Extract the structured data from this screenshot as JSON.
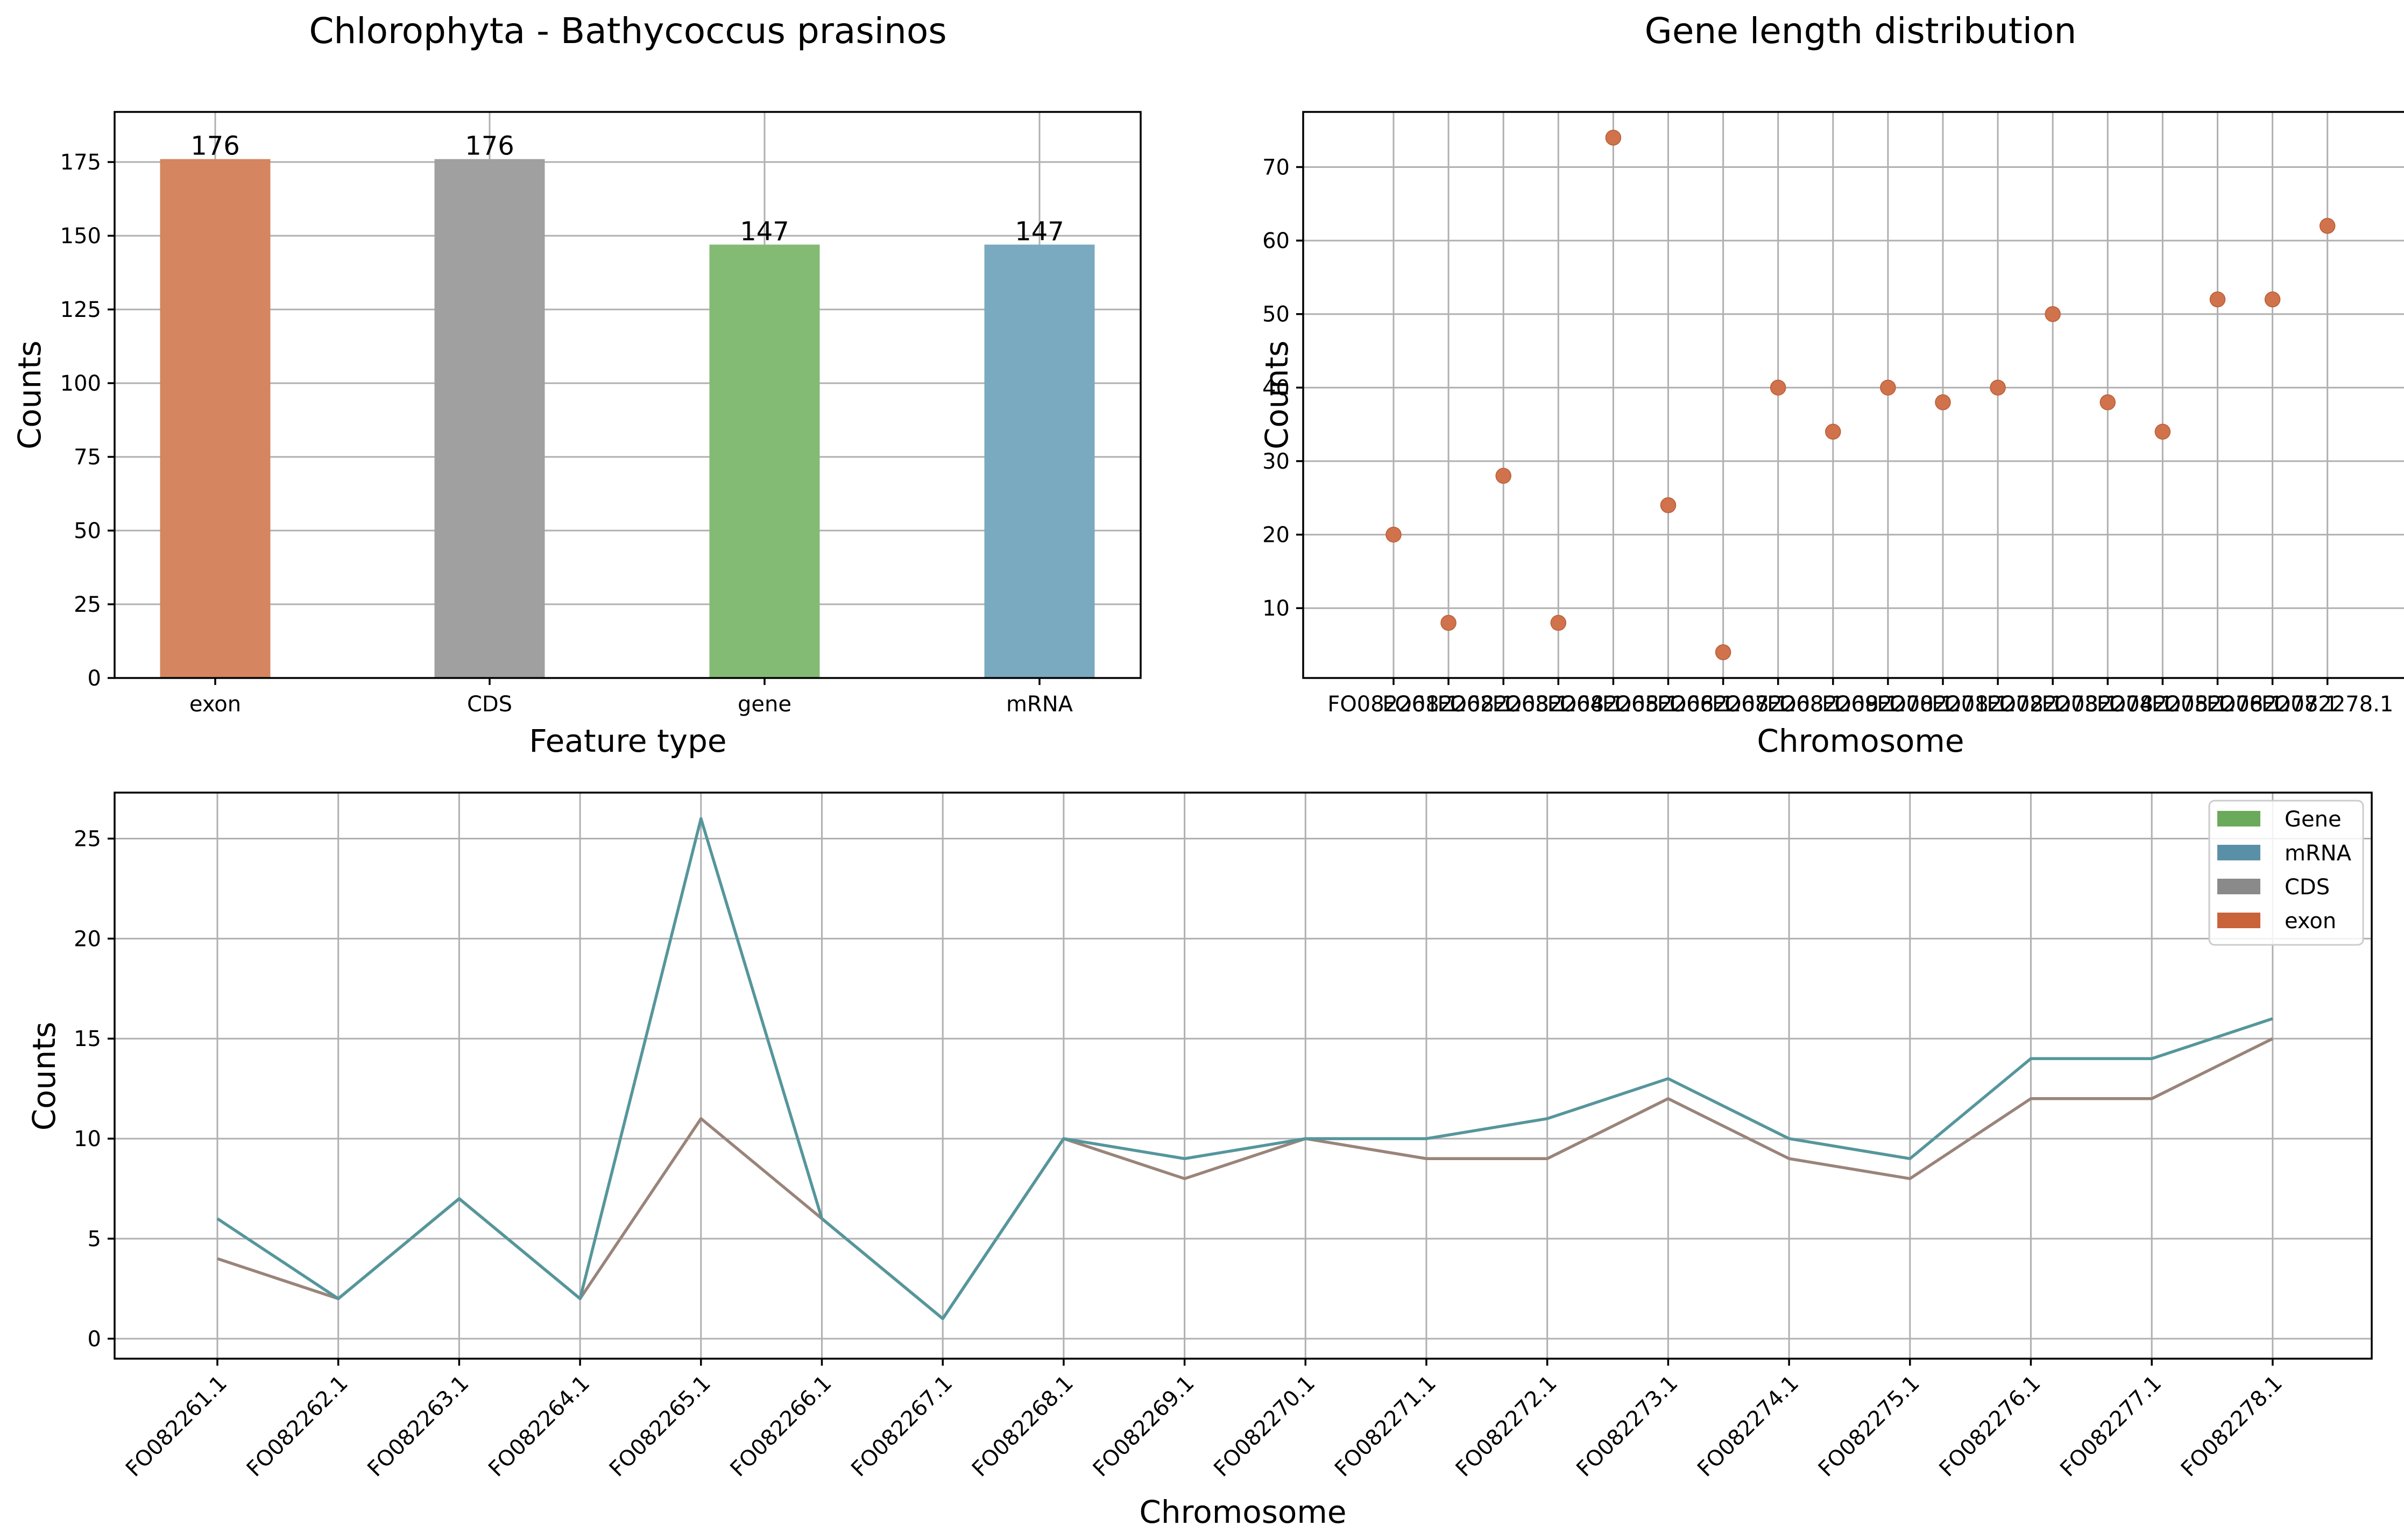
{
  "colors": {
    "exon": "#d5855f",
    "CDS": "#a0a0a0",
    "gene": "#83bb75",
    "mRNA": "#79aabf",
    "scatter": "#d0724b",
    "legend_gene": "#6aaa5a",
    "legend_mRNA": "#5a8fa8",
    "legend_CDS": "#8a8a8a",
    "legend_exon": "#c9633a",
    "line_mrna": "#55969b",
    "line_exon": "#9a847a"
  },
  "chart_data": [
    {
      "type": "bar",
      "title": "Chlorophyta - Bathycoccus prasinos",
      "xlabel": "Feature type",
      "ylabel": "Counts",
      "categories": [
        "exon",
        "CDS",
        "gene",
        "mRNA"
      ],
      "values": [
        176,
        176,
        147,
        147
      ],
      "data_labels": [
        "176",
        "176",
        "147",
        "147"
      ],
      "ylim": [
        0,
        192
      ],
      "yticks": [
        0,
        25,
        50,
        75,
        100,
        125,
        150,
        175
      ],
      "grid": true
    },
    {
      "type": "scatter",
      "title": "Gene length distribution",
      "xlabel": "Chromosome",
      "ylabel": "Counts",
      "categories": [
        "FO082261.1",
        "FO082262.1",
        "FO082263.1",
        "FO082264.1",
        "FO082265.1",
        "FO082266.1",
        "FO082267.1",
        "FO082268.1",
        "FO082269.1",
        "FO082270.1",
        "FO082271.1",
        "FO082272.1",
        "FO082273.1",
        "FO082274.1",
        "FO082275.1",
        "FO082276.1",
        "FO082277.1",
        "FO082278.1"
      ],
      "values": [
        20,
        8,
        28,
        8,
        74,
        24,
        4,
        40,
        34,
        40,
        38,
        40,
        50,
        38,
        34,
        52,
        52,
        62
      ],
      "ylim": [
        0.5,
        77.5
      ],
      "yticks": [
        10,
        20,
        30,
        40,
        50,
        60,
        70
      ],
      "grid": true
    },
    {
      "type": "line",
      "title": "",
      "xlabel": "Chromosome",
      "ylabel": "Counts",
      "categories": [
        "FO082261.1",
        "FO082262.1",
        "FO082263.1",
        "FO082264.1",
        "FO082265.1",
        "FO082266.1",
        "FO082267.1",
        "FO082268.1",
        "FO082269.1",
        "FO082270.1",
        "FO082271.1",
        "FO082272.1",
        "FO082273.1",
        "FO082274.1",
        "FO082275.1",
        "FO082276.1",
        "FO082277.1",
        "FO082278.1"
      ],
      "series": [
        {
          "name": "mRNA",
          "values": [
            6,
            2,
            7,
            2,
            26,
            6,
            1,
            10,
            9,
            10,
            10,
            11,
            13,
            10,
            9,
            14,
            14,
            16
          ]
        },
        {
          "name": "exon",
          "values": [
            4,
            2,
            7,
            2,
            11,
            6,
            1,
            10,
            8,
            10,
            9,
            9,
            12,
            9,
            8,
            12,
            12,
            15
          ]
        }
      ],
      "ylim": [
        -1,
        27.3
      ],
      "yticks": [
        0,
        5,
        10,
        15,
        20,
        25
      ],
      "grid": true,
      "legend_position": "top-right",
      "legend": [
        "Gene",
        "mRNA",
        "CDS",
        "exon"
      ]
    }
  ]
}
